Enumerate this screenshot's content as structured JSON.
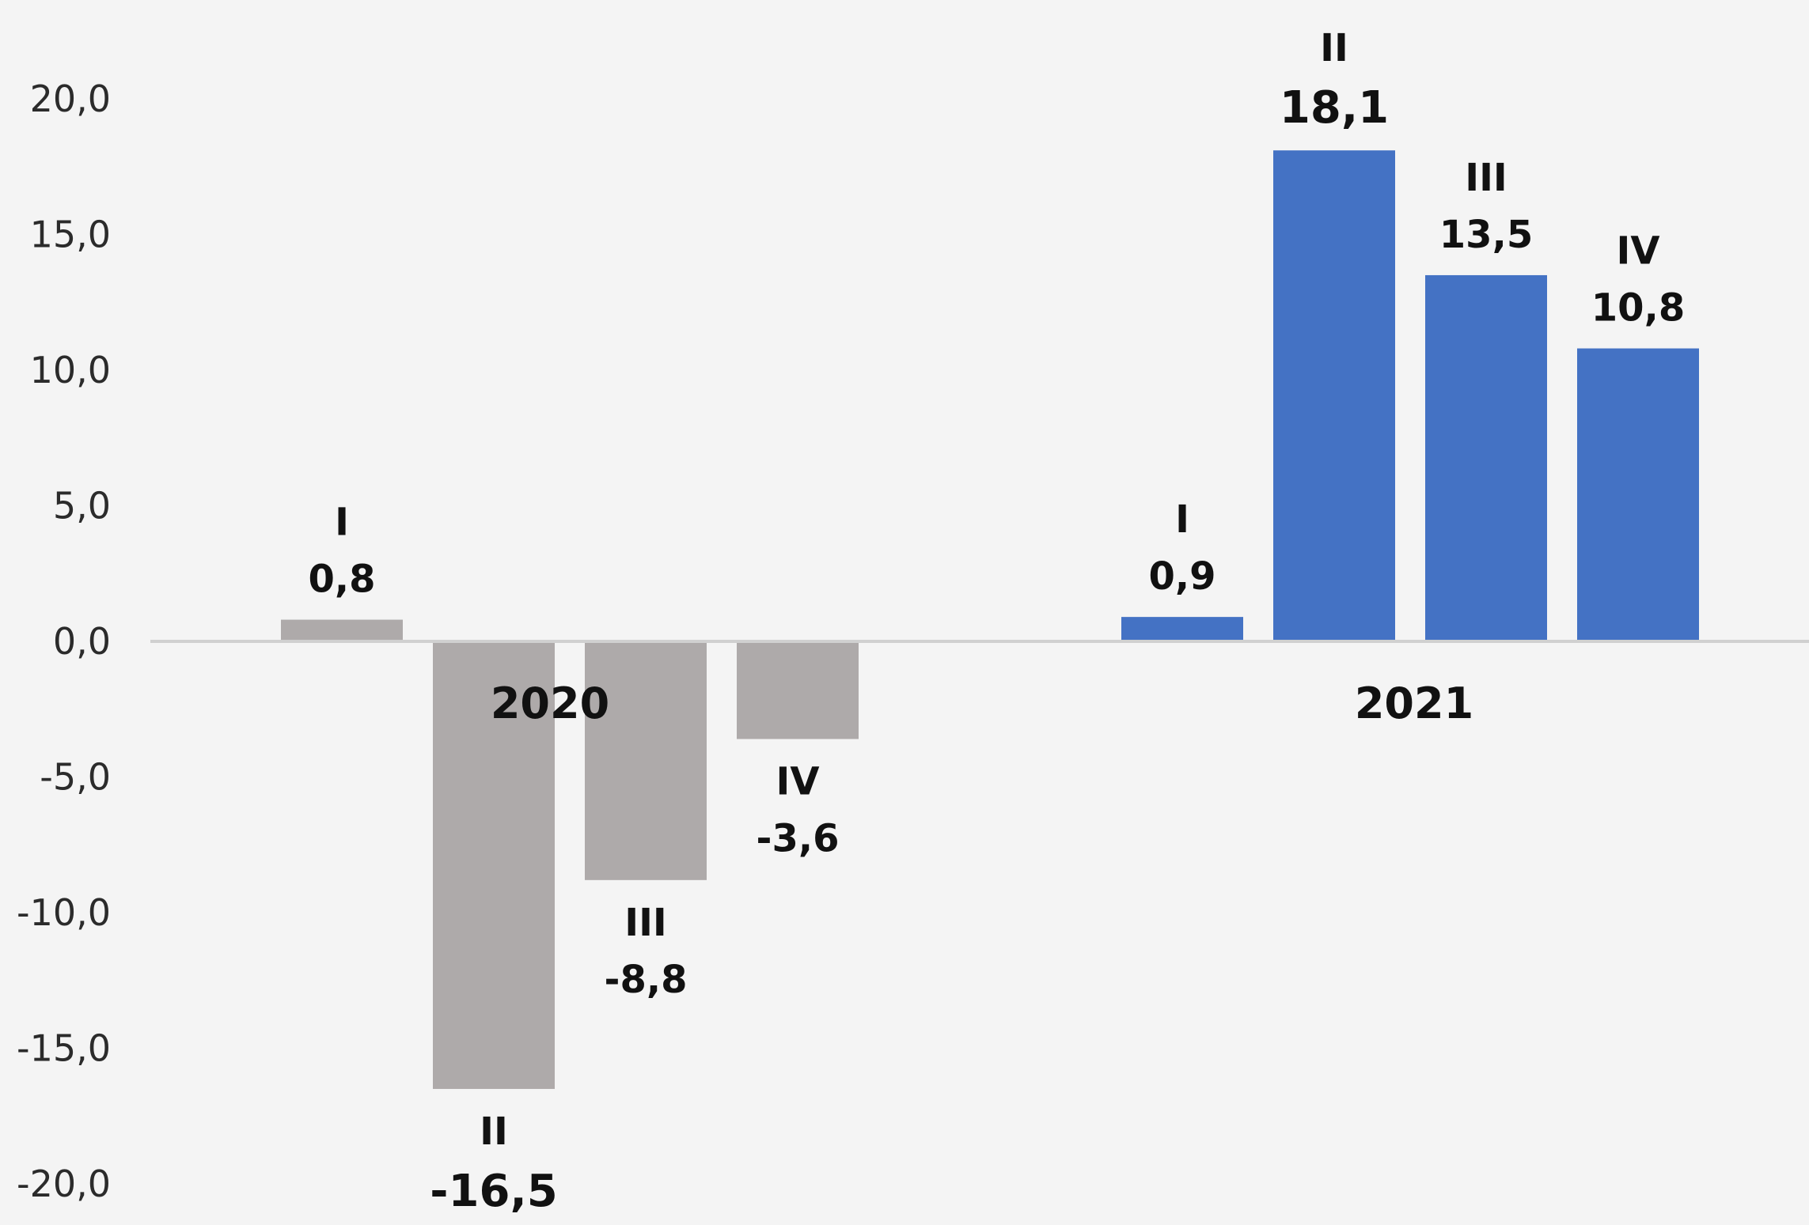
{
  "chart_data": {
    "type": "bar",
    "ylim": [
      -20,
      20
    ],
    "yticks": [
      "20,0",
      "15,0",
      "10,0",
      "5,0",
      "0,0",
      "-5,0",
      "-10,0",
      "-15,0",
      "-20,0"
    ],
    "groups": [
      {
        "year": "2020",
        "color": "#aeaaaa",
        "bars": [
          {
            "quarter": "I",
            "value": 0.8,
            "label": "0,8"
          },
          {
            "quarter": "II",
            "value": -16.5,
            "label": "-16,5"
          },
          {
            "quarter": "III",
            "value": -8.8,
            "label": "-8,8"
          },
          {
            "quarter": "IV",
            "value": -3.6,
            "label": "-3,6"
          }
        ]
      },
      {
        "year": "2021",
        "color": "#4472c4",
        "bars": [
          {
            "quarter": "I",
            "value": 0.9,
            "label": "0,9"
          },
          {
            "quarter": "II",
            "value": 18.1,
            "label": "18,1"
          },
          {
            "quarter": "III",
            "value": 13.5,
            "label": "13,5"
          },
          {
            "quarter": "IV",
            "value": 10.8,
            "label": "10,8"
          }
        ]
      }
    ],
    "grid": false,
    "legend": "none"
  }
}
